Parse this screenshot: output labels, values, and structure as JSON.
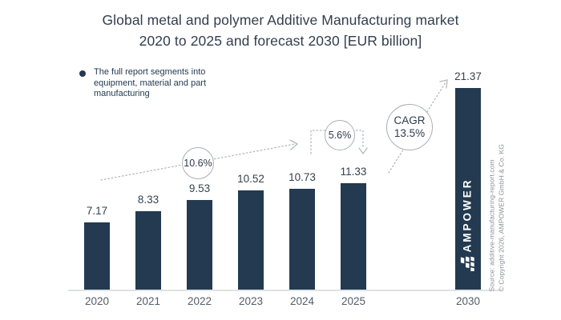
{
  "title": {
    "line1": "Global metal and polymer Additive Manufacturing market",
    "line2": "2020 to 2025 and forecast 2030 [EUR billion]"
  },
  "note": {
    "text": "The full report segments into equipment, material and part manufacturing"
  },
  "chart_data": {
    "type": "bar",
    "title": "Global metal and polymer Additive Manufacturing market 2020 to 2025 and forecast 2030 [EUR billion]",
    "unit": "EUR billion",
    "categories": [
      "2020",
      "2021",
      "2022",
      "2023",
      "2024",
      "2025",
      "2030"
    ],
    "values": [
      7.17,
      8.33,
      9.53,
      10.52,
      10.73,
      11.33,
      21.37
    ],
    "value_labels": [
      "7.17",
      "8.33",
      "9.53",
      "10.52",
      "10.73",
      "11.33",
      "21.37"
    ],
    "ylim": [
      0,
      22
    ],
    "grid": false,
    "annotations": {
      "badge1": "10.6%",
      "badge2": "5.6%",
      "cagr_line1": "CAGR",
      "cagr_line2": "13.5%"
    }
  },
  "watermark": {
    "brand": "AMPOWER",
    "source_line1": "Source: additive-manufacturing-report.com",
    "source_line2": "© Copyright 2026, AMPOWER GmbH & Co. KG"
  },
  "colors": {
    "bar": "#233a50",
    "title_text": "#323e4e",
    "dotted_line": "#b4b9be",
    "badge_border": "#aab0b6",
    "axis_line": "#dee2e5"
  }
}
